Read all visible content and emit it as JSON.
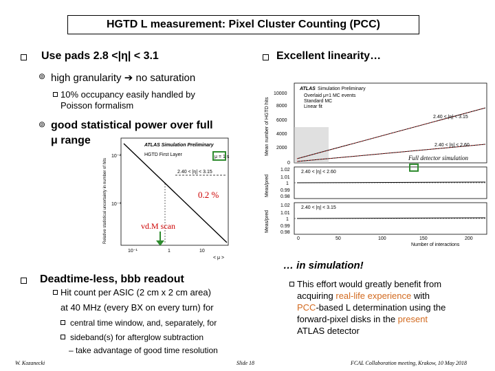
{
  "title": "HGTD L measurement: Pixel Cluster Counting (PCC)",
  "left": {
    "heading": "Use pads 2.8 <|η| < 3.1",
    "sub1": "high granularity",
    "sub1b": "no saturation",
    "subsub1": "10%  occupancy easily handled by",
    "subsub1b": "Poisson formalism",
    "sub2a": "good statistical power over full",
    "sub2b": "μ range",
    "annot_pct": "0.2 %",
    "annot_vdm": "vd.M scan"
  },
  "right": {
    "heading": "Excellent linearity…",
    "note": "Full detector simulation",
    "sim_label": "… in simulation!"
  },
  "bottom": {
    "heading": "Deadtime-less, bbb readout",
    "hit1": "Hit count per ASIC (2 cm x 2 cm area)",
    "hit2": "at 40 MHz (every BX on every turn) for",
    "item1": "central time window, and, separately, for",
    "item2": "sideband(s) for afterglow subtraction",
    "dash": "– take advantage of good time resolution"
  },
  "effort": {
    "l1": "This effort would greatly benefit from",
    "l2a": "acquiring ",
    "l2b": "real-life experience",
    "l2c": " with",
    "l3a": "PCC",
    "l3b": "-based L determination using the",
    "l4a": "forward-pixel disks in the ",
    "l4b": "present",
    "l5": "ATLAS detector"
  },
  "footer": {
    "author": "W. Kozanecki",
    "slide": "Slide 18",
    "meeting": "FCAL Collaboration meeting, Krakow, 10 May 2018"
  },
  "plot_left": {
    "atlas": "ATLAS Simulation Preliminary",
    "layer": "HGTD First Layer",
    "mu": "μ = 1 s",
    "cond": "2.40 < |η| < 3.15",
    "ylabel": "Relative statistical uncertainty in number of hits",
    "ticks_y": [
      "10⁻²",
      "10⁻³"
    ],
    "ticks_x": [
      "10⁻¹",
      "1",
      "10"
    ],
    "xlabel": "< μ >"
  },
  "plot_right": {
    "atlas": "ATLAS",
    "sim": "Simulation Preliminary",
    "leg1": "Overlaid μ=1 MC events",
    "leg2": "Standard MC",
    "leg3": "Linear fit",
    "cond1": "2.40 < |η| < 3.15",
    "cond2": "2.40 < |η| < 2.60",
    "ylabel": "Mean number of HGTD hits",
    "yticks": [
      "10000",
      "8000",
      "6000",
      "4000",
      "2000",
      "0"
    ],
    "r1label": "2.40 < |η| < 2.60",
    "r2label": "2.40 < |η| < 3.15",
    "rticks": [
      "1.02",
      "1.01",
      "1",
      "0.99",
      "0.98"
    ],
    "rlabel": "Meas/pred",
    "xticks": [
      "0",
      "50",
      "100",
      "150",
      "200"
    ],
    "xlabel": "Number of interactions"
  },
  "colors": {
    "green_box": "#2e8b2e",
    "accent_orange": "#d2691e",
    "red": "#cc0000"
  }
}
